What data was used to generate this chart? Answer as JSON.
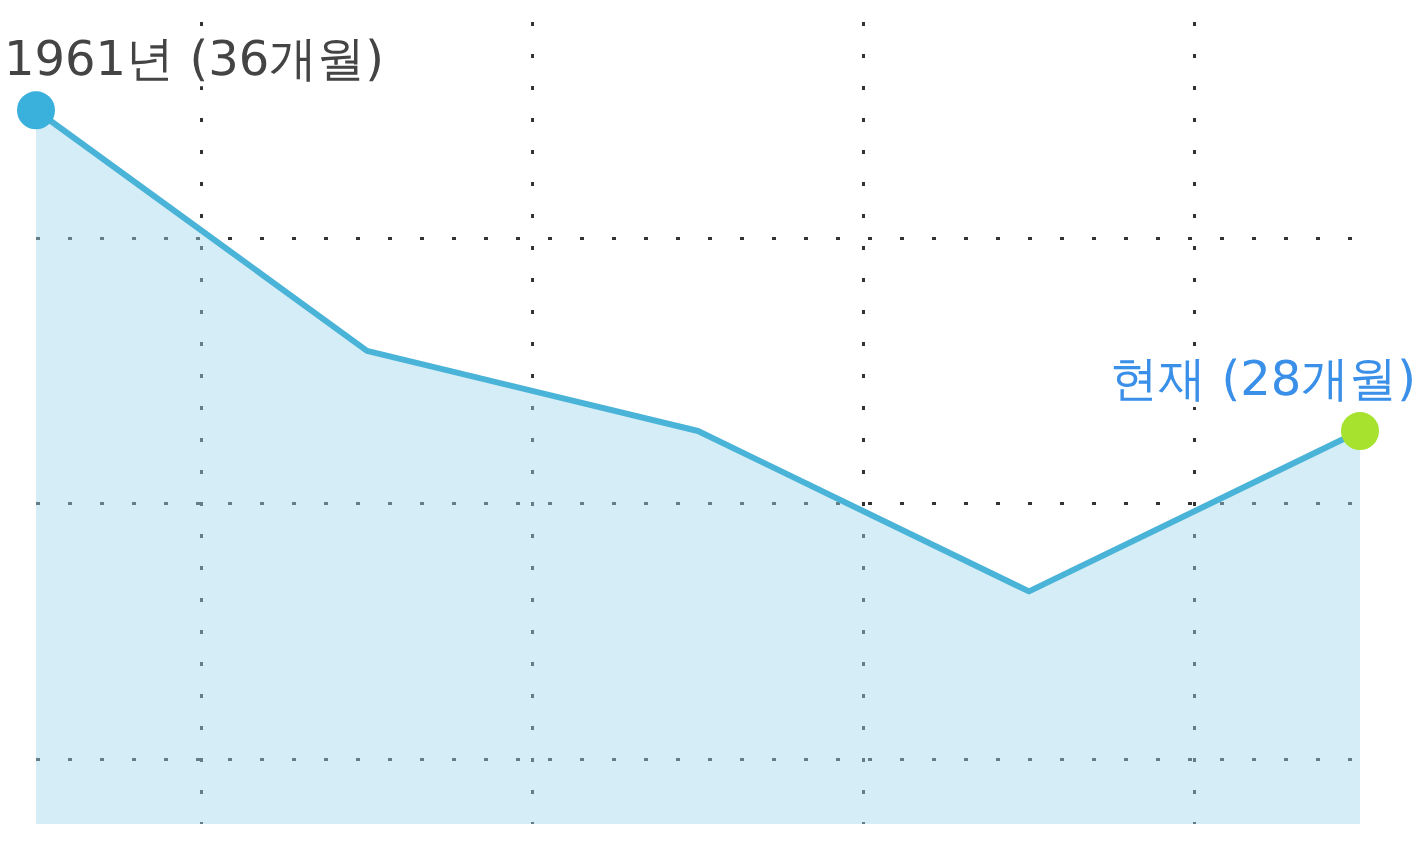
{
  "chart_data": {
    "type": "area",
    "categories": [
      null,
      null,
      null,
      null,
      null
    ],
    "series": [
      {
        "color": "#4ab3d8",
        "values": [
          36,
          30,
          28,
          24,
          28
        ],
        "colors": [
          "#3ab0dc",
          "#4ab3d8",
          "#4ab3d8",
          "#4ab3d8",
          "#a6e22e"
        ],
        "value_labels": [
          "1961년 (36개월)",
          null,
          null,
          null,
          "현재 (28개월)"
        ]
      }
    ],
    "ylim": [
      18.2,
      38.2
    ],
    "yticks": [
      {
        "value": 32.8,
        "label": null
      },
      {
        "value": 26.2,
        "label": null
      },
      {
        "value": 19.8,
        "label": null
      }
    ],
    "grid": true,
    "legend": false
  }
}
